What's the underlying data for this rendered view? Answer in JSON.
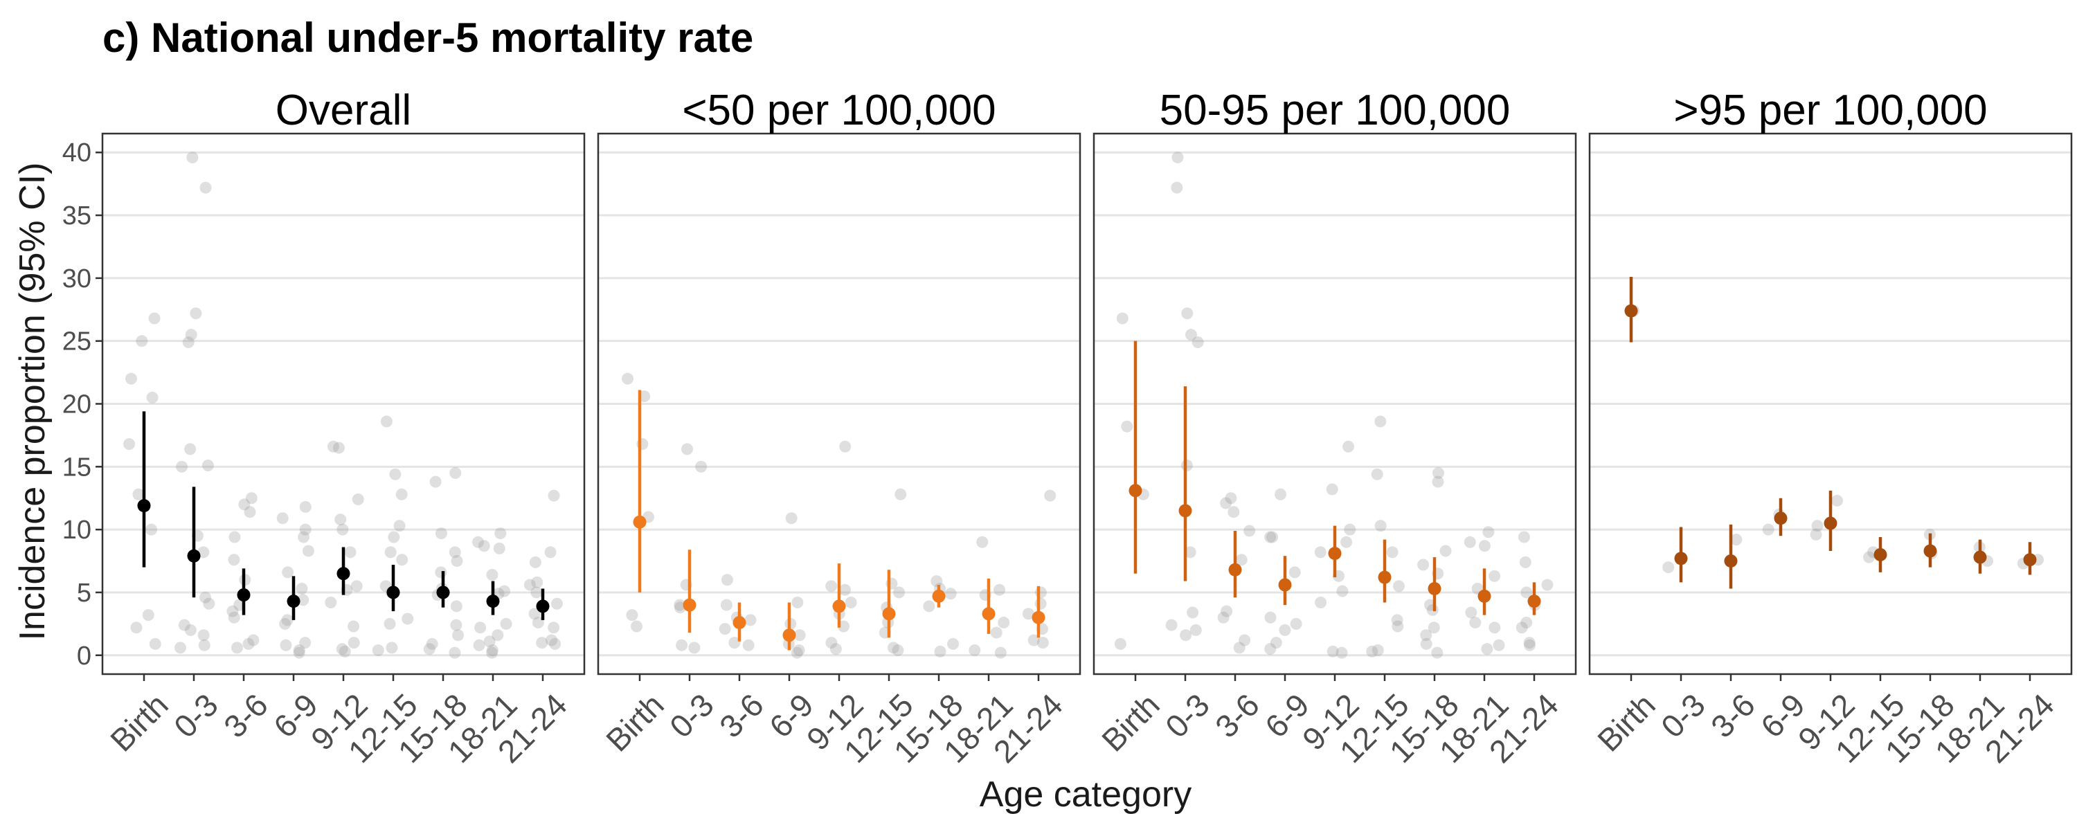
{
  "figure_title": "c) National under-5 mortality rate",
  "colors": {
    "overall": "#000000",
    "lt50": "#F07A1B",
    "mid": "#D0620F",
    "gt95": "#A34C0E",
    "raw_points": "#9a9a9a",
    "grid": "#e4e4e4",
    "panel_border": "#333333",
    "text": "#1a1a1a",
    "tick_text": "#4d4d4d"
  },
  "chart_data": {
    "type": "scatter",
    "description_style": "faceted point-range (estimate with 95% CI) over jittered raw points",
    "ylabel": "Incidence proportion (95% CI)",
    "xlabel": "Age category",
    "ylim": [
      -1.5,
      41.5
    ],
    "yticks": [
      0,
      5,
      10,
      15,
      20,
      25,
      30,
      35,
      40
    ],
    "ytick_labels": [
      "0",
      "5",
      "10",
      "15",
      "20",
      "25",
      "30",
      "35",
      "40"
    ],
    "grid": true,
    "categories": [
      "Birth",
      "0-3",
      "3-6",
      "6-9",
      "9-12",
      "12-15",
      "15-18",
      "18-21",
      "21-24"
    ],
    "panels": [
      {
        "title": "Overall",
        "color_key": "overall",
        "estimates": [
          {
            "x": "Birth",
            "y": 11.9,
            "lo": 7.0,
            "hi": 19.4
          },
          {
            "x": "0-3",
            "y": 7.9,
            "lo": 4.6,
            "hi": 13.4
          },
          {
            "x": "3-6",
            "y": 4.8,
            "lo": 3.2,
            "hi": 6.9
          },
          {
            "x": "6-9",
            "y": 4.3,
            "lo": 2.8,
            "hi": 6.3
          },
          {
            "x": "9-12",
            "y": 6.5,
            "lo": 4.8,
            "hi": 8.6
          },
          {
            "x": "12-15",
            "y": 5.0,
            "lo": 3.5,
            "hi": 7.2
          },
          {
            "x": "15-18",
            "y": 5.0,
            "lo": 3.8,
            "hi": 6.7
          },
          {
            "x": "18-21",
            "y": 4.3,
            "lo": 3.2,
            "hi": 5.9
          },
          {
            "x": "21-24",
            "y": 3.9,
            "lo": 2.8,
            "hi": 5.3
          }
        ],
        "raw_points": [
          {
            "x": "Birth",
            "values": [
              25.0,
              26.8,
              22.0,
              20.5,
              16.8,
              12.8,
              10.0,
              3.2,
              2.2,
              0.9
            ]
          },
          {
            "x": "0-3",
            "values": [
              39.6,
              37.2,
              27.2,
              25.5,
              24.9,
              16.4,
              15.1,
              15.0,
              9.5,
              8.2,
              4.6,
              4.1,
              2.4,
              2.0,
              1.6,
              0.8,
              0.6
            ]
          },
          {
            "x": "3-6",
            "values": [
              12.5,
              12.0,
              11.4,
              9.4,
              7.6,
              6.0,
              4.0,
              3.5,
              3.0,
              1.2,
              0.9,
              0.6
            ]
          },
          {
            "x": "6-9",
            "values": [
              11.8,
              10.9,
              10.0,
              9.4,
              8.3,
              6.6,
              5.3,
              4.4,
              2.8,
              2.5,
              1.0,
              0.8,
              0.4,
              0.2
            ]
          },
          {
            "x": "9-12",
            "values": [
              16.6,
              16.5,
              12.4,
              10.8,
              10.0,
              8.2,
              5.5,
              5.2,
              4.2,
              2.3,
              1.0,
              0.5,
              0.3
            ]
          },
          {
            "x": "12-15",
            "values": [
              18.6,
              14.4,
              12.8,
              10.3,
              9.4,
              8.2,
              7.6,
              5.5,
              5.0,
              2.9,
              2.5,
              0.6,
              0.4
            ]
          },
          {
            "x": "15-18",
            "values": [
              14.5,
              13.8,
              9.7,
              8.2,
              7.5,
              6.6,
              5.3,
              4.8,
              3.9,
              2.4,
              1.6,
              0.9,
              0.5,
              0.2
            ]
          },
          {
            "x": "18-21",
            "values": [
              9.7,
              9.0,
              8.7,
              8.5,
              6.4,
              5.1,
              4.9,
              2.5,
              2.2,
              1.6,
              1.1,
              0.8,
              0.4,
              0.2
            ]
          },
          {
            "x": "21-24",
            "values": [
              12.7,
              8.2,
              7.4,
              5.8,
              5.6,
              5.0,
              4.1,
              3.3,
              2.6,
              2.2,
              1.2,
              1.0,
              0.9
            ]
          }
        ]
      },
      {
        "title": "<50 per 100,000",
        "color_key": "lt50",
        "estimates": [
          {
            "x": "Birth",
            "y": 10.6,
            "lo": 5.0,
            "hi": 21.1
          },
          {
            "x": "0-3",
            "y": 4.0,
            "lo": 1.8,
            "hi": 8.4
          },
          {
            "x": "3-6",
            "y": 2.6,
            "lo": 1.1,
            "hi": 4.2
          },
          {
            "x": "6-9",
            "y": 1.6,
            "lo": 0.4,
            "hi": 4.2
          },
          {
            "x": "9-12",
            "y": 3.9,
            "lo": 2.2,
            "hi": 7.3
          },
          {
            "x": "12-15",
            "y": 3.3,
            "lo": 1.4,
            "hi": 6.8
          },
          {
            "x": "15-18",
            "y": 4.7,
            "lo": 3.8,
            "hi": 5.6
          },
          {
            "x": "18-21",
            "y": 3.3,
            "lo": 1.7,
            "hi": 6.1
          },
          {
            "x": "21-24",
            "y": 3.0,
            "lo": 1.4,
            "hi": 5.5
          }
        ],
        "raw_points": [
          {
            "x": "Birth",
            "values": [
              22.0,
              20.6,
              16.8,
              11.0,
              3.2,
              2.3
            ]
          },
          {
            "x": "0-3",
            "values": [
              16.4,
              15.0,
              5.6,
              4.0,
              3.8,
              0.8,
              0.6
            ]
          },
          {
            "x": "3-6",
            "values": [
              6.0,
              4.0,
              3.0,
              2.8,
              2.1,
              1.0,
              0.8
            ]
          },
          {
            "x": "6-9",
            "values": [
              10.9,
              4.2,
              2.5,
              1.6,
              0.9,
              0.4,
              0.2
            ]
          },
          {
            "x": "9-12",
            "values": [
              16.6,
              5.5,
              5.2,
              4.2,
              3.3,
              2.3,
              1.0,
              0.5
            ]
          },
          {
            "x": "12-15",
            "values": [
              12.8,
              5.7,
              5.0,
              3.8,
              2.6,
              1.8,
              0.6,
              0.4
            ]
          },
          {
            "x": "15-18",
            "values": [
              5.9,
              5.3,
              4.9,
              3.9,
              0.9,
              0.3
            ]
          },
          {
            "x": "18-21",
            "values": [
              9.0,
              5.2,
              4.8,
              2.6,
              1.8,
              0.4,
              0.2
            ]
          },
          {
            "x": "21-24",
            "values": [
              12.7,
              5.0,
              4.1,
              3.3,
              2.1,
              1.2,
              1.0
            ]
          }
        ]
      },
      {
        "title": "50-95 per 100,000",
        "color_key": "mid",
        "estimates": [
          {
            "x": "Birth",
            "y": 13.1,
            "lo": 6.5,
            "hi": 25.0
          },
          {
            "x": "0-3",
            "y": 11.5,
            "lo": 5.9,
            "hi": 21.4
          },
          {
            "x": "3-6",
            "y": 6.8,
            "lo": 4.6,
            "hi": 9.9
          },
          {
            "x": "6-9",
            "y": 5.6,
            "lo": 4.0,
            "hi": 7.9
          },
          {
            "x": "9-12",
            "y": 8.1,
            "lo": 6.2,
            "hi": 10.3
          },
          {
            "x": "12-15",
            "y": 6.2,
            "lo": 4.2,
            "hi": 9.2
          },
          {
            "x": "15-18",
            "y": 5.3,
            "lo": 3.5,
            "hi": 7.8
          },
          {
            "x": "18-21",
            "y": 4.7,
            "lo": 3.2,
            "hi": 6.9
          },
          {
            "x": "21-24",
            "y": 4.3,
            "lo": 3.2,
            "hi": 5.8
          }
        ],
        "raw_points": [
          {
            "x": "Birth",
            "values": [
              26.8,
              18.2,
              12.8,
              0.9
            ]
          },
          {
            "x": "0-3",
            "values": [
              39.6,
              37.2,
              27.2,
              25.5,
              24.9,
              15.1,
              8.2,
              3.4,
              2.4,
              2.0,
              1.6
            ]
          },
          {
            "x": "3-6",
            "values": [
              12.5,
              12.1,
              11.4,
              9.9,
              7.6,
              3.5,
              3.0,
              1.2,
              0.6
            ]
          },
          {
            "x": "6-9",
            "values": [
              12.8,
              9.4,
              9.4,
              6.6,
              3.0,
              2.5,
              2.0,
              1.0,
              0.5
            ]
          },
          {
            "x": "9-12",
            "values": [
              16.6,
              13.2,
              10.0,
              9.0,
              8.2,
              6.3,
              5.1,
              4.2,
              0.3,
              0.2
            ]
          },
          {
            "x": "12-15",
            "values": [
              18.6,
              14.4,
              10.3,
              8.2,
              5.5,
              2.8,
              2.3,
              0.4,
              0.3
            ]
          },
          {
            "x": "15-18",
            "values": [
              14.5,
              13.8,
              8.3,
              7.2,
              6.5,
              4.0,
              3.6,
              2.2,
              1.6,
              0.9,
              0.2
            ]
          },
          {
            "x": "18-21",
            "values": [
              9.8,
              9.0,
              8.7,
              6.3,
              5.3,
              3.4,
              2.6,
              2.2,
              0.8,
              0.5
            ]
          },
          {
            "x": "21-24",
            "values": [
              9.4,
              7.4,
              5.6,
              5.0,
              4.0,
              2.6,
              2.2,
              1.0,
              0.8
            ]
          }
        ]
      },
      {
        "title": ">95 per 100,000",
        "color_key": "gt95",
        "estimates": [
          {
            "x": "Birth",
            "y": 27.4,
            "lo": 24.9,
            "hi": 30.1
          },
          {
            "x": "0-3",
            "y": 7.7,
            "lo": 5.8,
            "hi": 10.2
          },
          {
            "x": "3-6",
            "y": 7.5,
            "lo": 5.3,
            "hi": 10.4
          },
          {
            "x": "6-9",
            "y": 10.9,
            "lo": 9.5,
            "hi": 12.5
          },
          {
            "x": "9-12",
            "y": 10.5,
            "lo": 8.3,
            "hi": 13.1
          },
          {
            "x": "12-15",
            "y": 8.0,
            "lo": 6.6,
            "hi": 9.4
          },
          {
            "x": "15-18",
            "y": 8.3,
            "lo": 7.0,
            "hi": 9.7
          },
          {
            "x": "18-21",
            "y": 7.8,
            "lo": 6.5,
            "hi": 9.2
          },
          {
            "x": "21-24",
            "y": 7.6,
            "lo": 6.4,
            "hi": 9.0
          }
        ],
        "raw_points": [
          {
            "x": "Birth",
            "values": [
              27.4
            ]
          },
          {
            "x": "0-3",
            "values": [
              7.0
            ]
          },
          {
            "x": "3-6",
            "values": [
              9.2,
              7.5
            ]
          },
          {
            "x": "6-9",
            "values": [
              11.2,
              10.0
            ]
          },
          {
            "x": "9-12",
            "values": [
              12.3,
              10.3,
              9.6
            ]
          },
          {
            "x": "12-15",
            "values": [
              8.2,
              7.8
            ]
          },
          {
            "x": "15-18",
            "values": [
              9.6,
              8.1
            ]
          },
          {
            "x": "18-21",
            "values": [
              8.6,
              7.5
            ]
          },
          {
            "x": "21-24",
            "values": [
              7.6,
              7.3
            ]
          }
        ]
      }
    ]
  }
}
